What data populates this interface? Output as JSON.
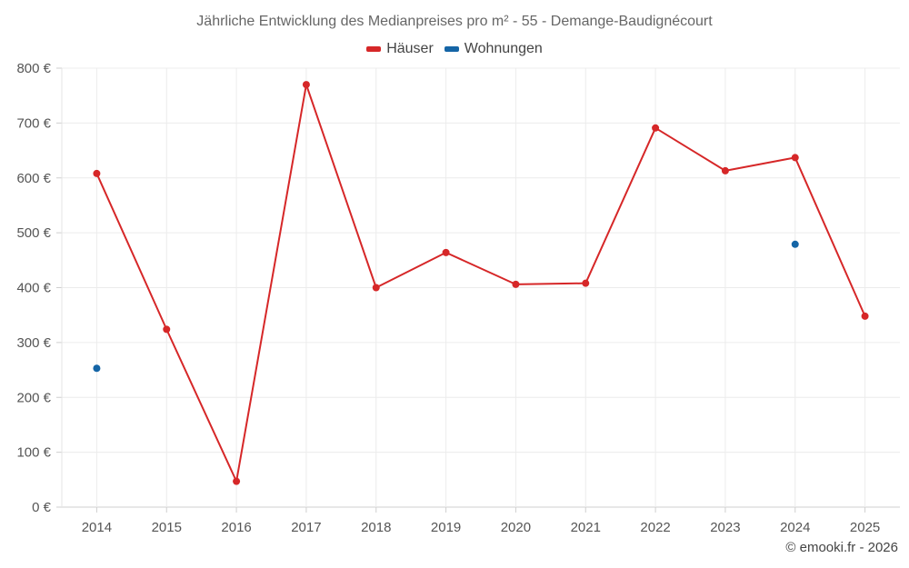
{
  "chart_data": {
    "type": "line",
    "title": "Jährliche Entwicklung des Medianpreises pro m² - 55 - Demange-Baudignécourt",
    "categories": [
      "2014",
      "2015",
      "2016",
      "2017",
      "2018",
      "2019",
      "2020",
      "2021",
      "2022",
      "2023",
      "2024",
      "2025"
    ],
    "series": [
      {
        "name": "Häuser",
        "color": "#d62728",
        "connected": true,
        "values": [
          608,
          324,
          47,
          770,
          400,
          464,
          406,
          408,
          691,
          613,
          637,
          348
        ]
      },
      {
        "name": "Wohnungen",
        "color": "#1565a6",
        "connected": false,
        "values": [
          253,
          null,
          null,
          null,
          null,
          null,
          null,
          null,
          null,
          null,
          479,
          null
        ]
      }
    ],
    "ylim": [
      0,
      800
    ],
    "yticks": [
      0,
      100,
      200,
      300,
      400,
      500,
      600,
      700,
      800
    ],
    "ytick_labels": [
      "0 €",
      "100 €",
      "200 €",
      "300 €",
      "400 €",
      "500 €",
      "600 €",
      "700 €",
      "800 €"
    ],
    "grid": true,
    "legend_position": "top-center"
  },
  "credit": "© emooki.fr - 2026"
}
